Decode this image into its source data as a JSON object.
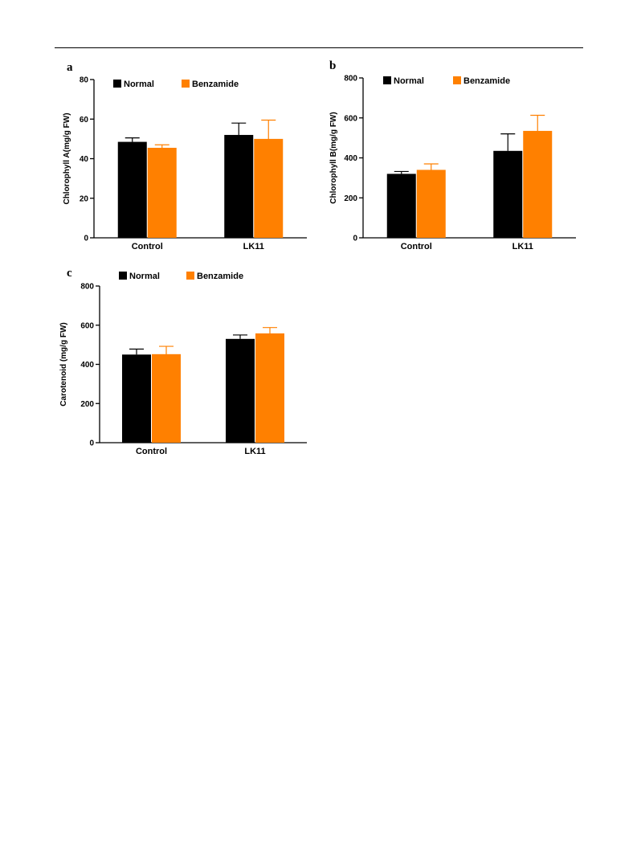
{
  "colors": {
    "normal": "#000000",
    "benzamide": "#ff8000",
    "axis": "#000000"
  },
  "chart_data": [
    {
      "panel": "a",
      "type": "bar",
      "categories": [
        "Control",
        "LK11"
      ],
      "series": [
        {
          "name": "Normal",
          "values": [
            48.5,
            52.0
          ],
          "errors": [
            2.0,
            6.0
          ]
        },
        {
          "name": "Benzamide",
          "values": [
            45.5,
            50.0
          ],
          "errors": [
            1.5,
            9.5
          ]
        }
      ],
      "ylabel": "Chlorophyll A(mg/g FW)",
      "ylim": [
        0,
        80
      ],
      "yticks": [
        "0",
        "20",
        "40",
        "60",
        "80"
      ],
      "legend": "top"
    },
    {
      "panel": "b",
      "type": "bar",
      "categories": [
        "Control",
        "LK11"
      ],
      "series": [
        {
          "name": "Normal",
          "values": [
            320,
            435
          ],
          "errors": [
            12,
            85
          ]
        },
        {
          "name": "Benzamide",
          "values": [
            340,
            535
          ],
          "errors": [
            30,
            78
          ]
        }
      ],
      "ylabel": "Chlorophyll B(mg/g FW)",
      "ylim": [
        0,
        800
      ],
      "yticks": [
        "0",
        "200",
        "400",
        "600",
        "800"
      ],
      "legend": "top"
    },
    {
      "panel": "c",
      "type": "bar",
      "categories": [
        "Control",
        "LK11"
      ],
      "series": [
        {
          "name": "Normal",
          "values": [
            450,
            530
          ],
          "errors": [
            28,
            20
          ]
        },
        {
          "name": "Benzamide",
          "values": [
            452,
            558
          ],
          "errors": [
            40,
            30
          ]
        }
      ],
      "ylabel": "Carotenoid (mg/g FW)",
      "ylim": [
        0,
        800
      ],
      "yticks": [
        "0",
        "200",
        "400",
        "600",
        "800"
      ],
      "legend": "top"
    }
  ]
}
